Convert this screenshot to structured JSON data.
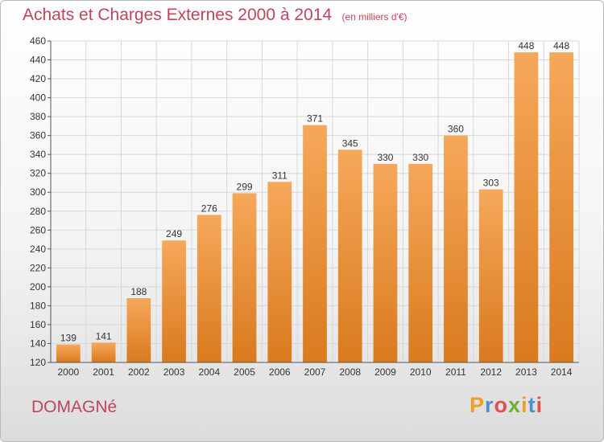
{
  "header": {
    "title": "Achats et Charges Externes 2000 à 2014",
    "subtitle": "(en milliers d'€)"
  },
  "footer": {
    "location": "DOMAGNé",
    "logo_letters": [
      "P",
      "r",
      "o",
      "x",
      "i",
      "t",
      "i"
    ],
    "logo_colors": [
      "#f0a020",
      "#4a90d0",
      "#e05050",
      "#70b030",
      "#f0a020",
      "#4a90d0",
      "#e05050"
    ]
  },
  "colors": {
    "title": "#c0455a",
    "bar_light": "#f6a85a",
    "bar_dark": "#d97a1e",
    "grid": "#d8d8d8",
    "axis_text": "#333333"
  },
  "chart_data": {
    "type": "bar",
    "title": "Achats et Charges Externes 2000 à 2014",
    "subtitle": "(en milliers d'€)",
    "xlabel": "",
    "ylabel": "",
    "categories": [
      "2000",
      "2001",
      "2002",
      "2003",
      "2004",
      "2005",
      "2006",
      "2007",
      "2008",
      "2009",
      "2010",
      "2011",
      "2012",
      "2013",
      "2014"
    ],
    "values": [
      139,
      141,
      188,
      249,
      276,
      299,
      311,
      371,
      345,
      330,
      330,
      360,
      303,
      448,
      448
    ],
    "ylim": [
      120,
      460
    ],
    "yticks": [
      120,
      140,
      160,
      180,
      200,
      220,
      240,
      260,
      280,
      300,
      320,
      340,
      360,
      380,
      400,
      420,
      440,
      460
    ],
    "grid": true,
    "data_labels": true
  }
}
